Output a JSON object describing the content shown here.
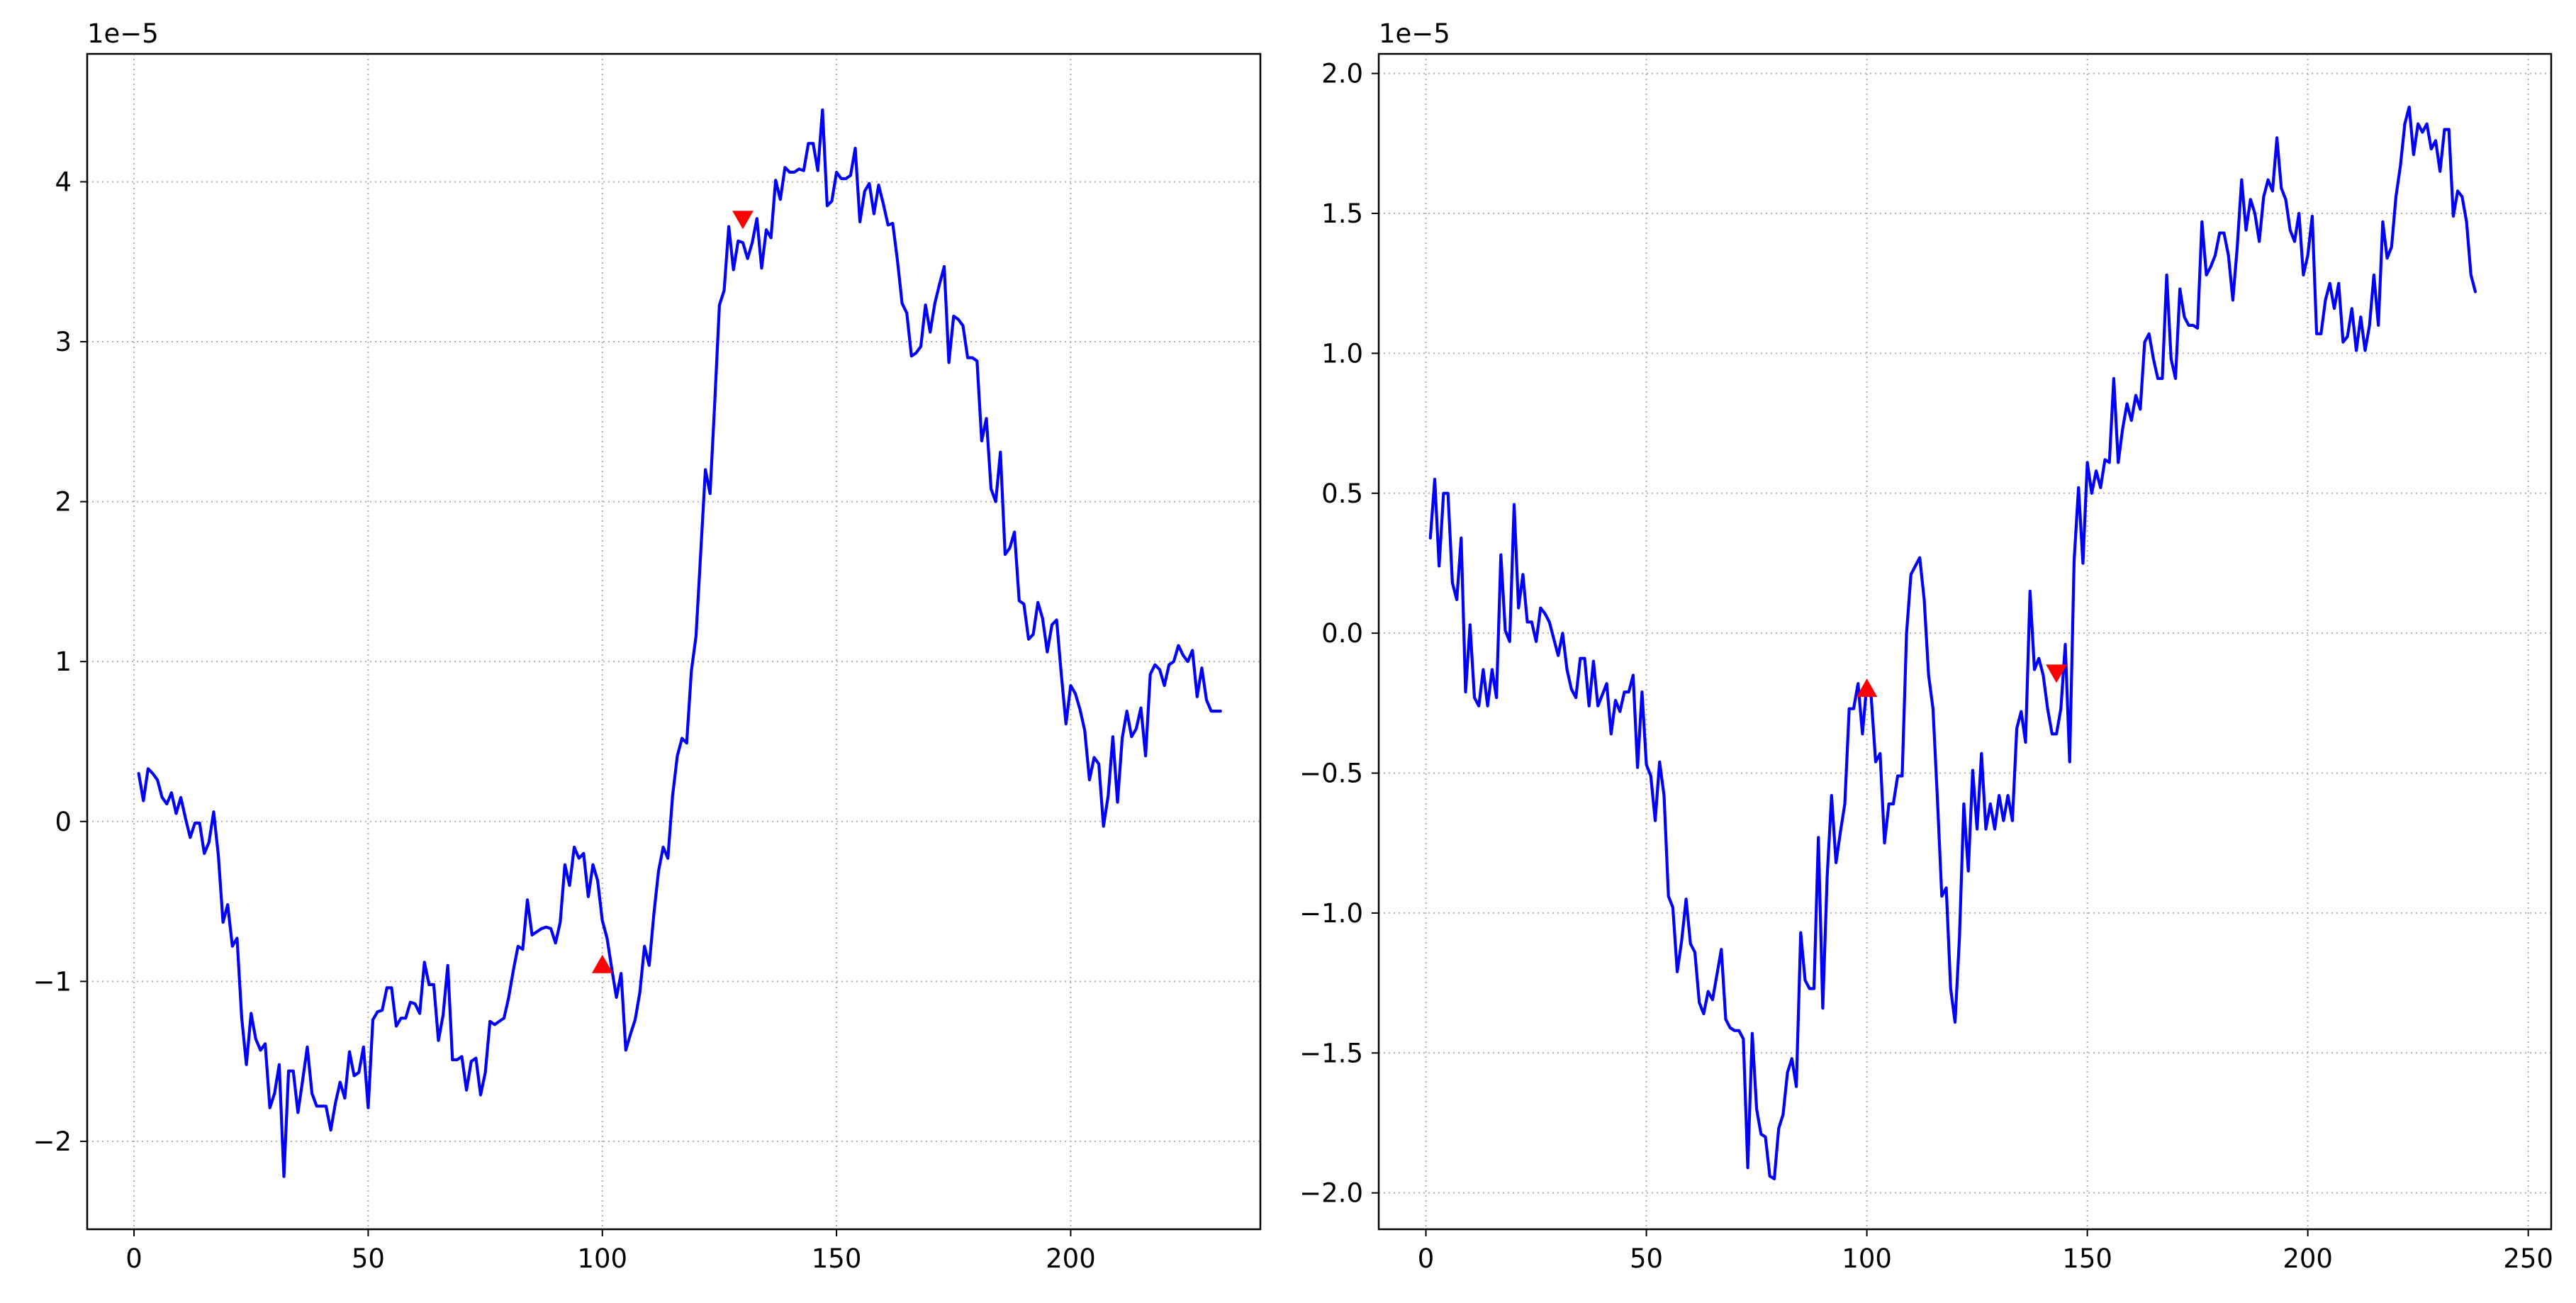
{
  "chart_data": [
    {
      "type": "line",
      "title": "",
      "xlabel": "",
      "ylabel": "",
      "offset_label": "1e−5",
      "xlim": [
        -10,
        240.5
      ],
      "ylim": [
        -2.55,
        4.8
      ],
      "xticks": [
        0,
        50,
        100,
        150,
        200
      ],
      "xtick_labels": [
        "0",
        "50",
        "100",
        "150",
        "200"
      ],
      "yticks": [
        -2,
        -1,
        0,
        1,
        2,
        3,
        4
      ],
      "ytick_labels": [
        "−2",
        "−1",
        "0",
        "1",
        "2",
        "3",
        "4"
      ],
      "grid": true,
      "line_color": "#0000ff",
      "marker_color": "#ff0000",
      "x_start": 1,
      "values": [
        0.3,
        0.13,
        0.33,
        0.3,
        0.26,
        0.15,
        0.11,
        0.18,
        0.05,
        0.15,
        0.02,
        -0.1,
        -0.01,
        -0.01,
        -0.2,
        -0.13,
        0.06,
        -0.21,
        -0.63,
        -0.52,
        -0.78,
        -0.73,
        -1.23,
        -1.52,
        -1.2,
        -1.36,
        -1.43,
        -1.39,
        -1.79,
        -1.7,
        -1.52,
        -2.22,
        -1.56,
        -1.56,
        -1.82,
        -1.62,
        -1.41,
        -1.7,
        -1.78,
        -1.78,
        -1.78,
        -1.93,
        -1.76,
        -1.63,
        -1.73,
        -1.44,
        -1.59,
        -1.57,
        -1.41,
        -1.79,
        -1.24,
        -1.19,
        -1.18,
        -1.04,
        -1.04,
        -1.28,
        -1.23,
        -1.23,
        -1.13,
        -1.14,
        -1.2,
        -0.88,
        -1.02,
        -1.02,
        -1.37,
        -1.21,
        -0.9,
        -1.49,
        -1.49,
        -1.47,
        -1.68,
        -1.5,
        -1.48,
        -1.71,
        -1.57,
        -1.25,
        -1.27,
        -1.25,
        -1.23,
        -1.1,
        -0.93,
        -0.78,
        -0.8,
        -0.49,
        -0.71,
        -0.69,
        -0.67,
        -0.66,
        -0.67,
        -0.76,
        -0.63,
        -0.27,
        -0.4,
        -0.16,
        -0.23,
        -0.2,
        -0.47,
        -0.27,
        -0.37,
        -0.62,
        -0.73,
        -0.92,
        -1.1,
        -0.95,
        -1.43,
        -1.33,
        -1.24,
        -1.07,
        -0.78,
        -0.9,
        -0.58,
        -0.31,
        -0.16,
        -0.23,
        0.16,
        0.41,
        0.52,
        0.49,
        0.94,
        1.16,
        1.68,
        2.2,
        2.05,
        2.62,
        3.23,
        3.32,
        3.72,
        3.45,
        3.63,
        3.62,
        3.52,
        3.62,
        3.77,
        3.46,
        3.7,
        3.65,
        4.01,
        3.89,
        4.09,
        4.06,
        4.06,
        4.08,
        4.07,
        4.24,
        4.24,
        4.07,
        4.45,
        3.85,
        3.88,
        4.06,
        4.02,
        4.02,
        4.04,
        4.21,
        3.75,
        3.94,
        3.99,
        3.8,
        3.98,
        3.86,
        3.73,
        3.74,
        3.51,
        3.24,
        3.18,
        2.91,
        2.93,
        2.97,
        3.23,
        3.06,
        3.24,
        3.36,
        3.47,
        2.87,
        3.16,
        3.14,
        3.1,
        2.9,
        2.9,
        2.88,
        2.38,
        2.52,
        2.08,
        2.0,
        2.31,
        1.67,
        1.71,
        1.81,
        1.38,
        1.36,
        1.14,
        1.17,
        1.37,
        1.27,
        1.06,
        1.23,
        1.26,
        0.92,
        0.61,
        0.85,
        0.8,
        0.7,
        0.57,
        0.26,
        0.4,
        0.36,
        -0.03,
        0.16,
        0.53,
        0.12,
        0.52,
        0.69,
        0.53,
        0.58,
        0.71,
        0.41,
        0.92,
        0.98,
        0.95,
        0.85,
        0.98,
        1.0,
        1.1,
        1.04,
        1.0,
        1.07,
        0.78,
        0.96,
        0.76,
        0.69,
        0.69,
        0.69
      ],
      "markers": [
        {
          "x": 100,
          "y": -0.9,
          "symbol": "triangle-up"
        },
        {
          "x": 130,
          "y": 3.77,
          "symbol": "triangle-down"
        }
      ]
    },
    {
      "type": "line",
      "title": "",
      "xlabel": "",
      "ylabel": "",
      "offset_label": "1e−5",
      "xlim": [
        -10.7,
        255.2
      ],
      "ylim": [
        -2.13,
        2.07
      ],
      "xticks": [
        0,
        50,
        100,
        150,
        200,
        250
      ],
      "xtick_labels": [
        "0",
        "50",
        "100",
        "150",
        "200",
        "250"
      ],
      "yticks": [
        -2.0,
        -1.5,
        -1.0,
        -0.5,
        0.0,
        0.5,
        1.0,
        1.5,
        2.0
      ],
      "ytick_labels": [
        "−2.0",
        "−1.5",
        "−1.0",
        "−0.5",
        "0.0",
        "0.5",
        "1.0",
        "1.5",
        "2.0"
      ],
      "grid": true,
      "line_color": "#0000ff",
      "marker_color": "#ff0000",
      "x_start": 1,
      "values": [
        0.34,
        0.55,
        0.24,
        0.5,
        0.5,
        0.18,
        0.12,
        0.34,
        -0.21,
        0.03,
        -0.23,
        -0.26,
        -0.13,
        -0.26,
        -0.13,
        -0.23,
        0.28,
        0.01,
        -0.03,
        0.46,
        0.09,
        0.21,
        0.04,
        0.04,
        -0.03,
        0.09,
        0.07,
        0.04,
        -0.02,
        -0.08,
        0.0,
        -0.13,
        -0.2,
        -0.23,
        -0.09,
        -0.09,
        -0.26,
        -0.1,
        -0.26,
        -0.22,
        -0.18,
        -0.36,
        -0.24,
        -0.28,
        -0.21,
        -0.21,
        -0.15,
        -0.48,
        -0.21,
        -0.47,
        -0.51,
        -0.67,
        -0.46,
        -0.58,
        -0.94,
        -0.98,
        -1.21,
        -1.1,
        -0.95,
        -1.11,
        -1.14,
        -1.32,
        -1.36,
        -1.28,
        -1.31,
        -1.22,
        -1.13,
        -1.38,
        -1.41,
        -1.42,
        -1.42,
        -1.45,
        -1.91,
        -1.43,
        -1.7,
        -1.79,
        -1.8,
        -1.94,
        -1.95,
        -1.77,
        -1.72,
        -1.57,
        -1.52,
        -1.62,
        -1.07,
        -1.24,
        -1.27,
        -1.27,
        -0.73,
        -1.34,
        -0.87,
        -0.58,
        -0.82,
        -0.71,
        -0.61,
        -0.27,
        -0.27,
        -0.18,
        -0.36,
        -0.18,
        -0.23,
        -0.46,
        -0.43,
        -0.75,
        -0.61,
        -0.61,
        -0.51,
        -0.51,
        0.0,
        0.21,
        0.24,
        0.27,
        0.12,
        -0.15,
        -0.27,
        -0.59,
        -0.94,
        -0.91,
        -1.27,
        -1.39,
        -1.09,
        -0.61,
        -0.85,
        -0.49,
        -0.7,
        -0.43,
        -0.7,
        -0.61,
        -0.7,
        -0.58,
        -0.67,
        -0.58,
        -0.67,
        -0.34,
        -0.28,
        -0.39,
        0.15,
        -0.13,
        -0.09,
        -0.15,
        -0.27,
        -0.36,
        -0.36,
        -0.27,
        -0.04,
        -0.46,
        0.26,
        0.52,
        0.25,
        0.61,
        0.5,
        0.58,
        0.52,
        0.62,
        0.61,
        0.91,
        0.61,
        0.73,
        0.82,
        0.76,
        0.85,
        0.8,
        1.04,
        1.07,
        0.98,
        0.91,
        0.91,
        1.28,
        0.98,
        0.91,
        1.23,
        1.13,
        1.1,
        1.1,
        1.09,
        1.47,
        1.28,
        1.31,
        1.35,
        1.43,
        1.43,
        1.35,
        1.19,
        1.38,
        1.62,
        1.44,
        1.55,
        1.5,
        1.4,
        1.56,
        1.62,
        1.58,
        1.77,
        1.59,
        1.55,
        1.44,
        1.4,
        1.5,
        1.28,
        1.35,
        1.49,
        1.07,
        1.07,
        1.19,
        1.25,
        1.16,
        1.25,
        1.04,
        1.06,
        1.16,
        1.01,
        1.13,
        1.01,
        1.1,
        1.28,
        1.1,
        1.47,
        1.34,
        1.38,
        1.56,
        1.67,
        1.82,
        1.88,
        1.71,
        1.82,
        1.79,
        1.82,
        1.73,
        1.76,
        1.65,
        1.8,
        1.8,
        1.49,
        1.58,
        1.56,
        1.47,
        1.28,
        1.22
      ],
      "markers": [
        {
          "x": 100,
          "y": -0.2,
          "symbol": "triangle-up"
        },
        {
          "x": 143,
          "y": -0.14,
          "symbol": "triangle-down"
        }
      ]
    }
  ]
}
